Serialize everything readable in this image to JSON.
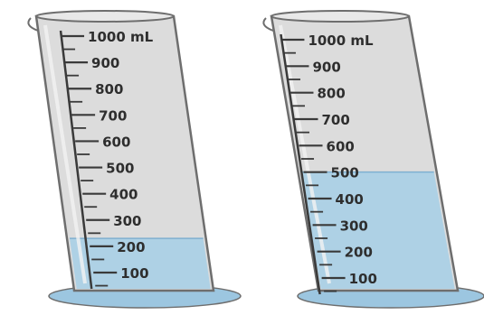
{
  "cylinders": [
    {
      "name": "cylinder-left",
      "scale_labels": [
        "1000 mL",
        "900",
        "800",
        "700",
        "600",
        "500",
        "400",
        "300",
        "200",
        "100"
      ],
      "liquid_level": 230,
      "liquid_color": "#a9cfe6"
    },
    {
      "name": "cylinder-right",
      "scale_labels": [
        "1000 mL",
        "900",
        "800",
        "700",
        "600",
        "500",
        "400",
        "300",
        "200",
        "100"
      ],
      "liquid_level": 500,
      "liquid_color": "#a9cfe6"
    }
  ],
  "colors": {
    "glass": "#dcdcdc",
    "glass_edge": "#6e6e6e",
    "scale_line": "#3a3a3a",
    "base": "#9cc6e0"
  }
}
